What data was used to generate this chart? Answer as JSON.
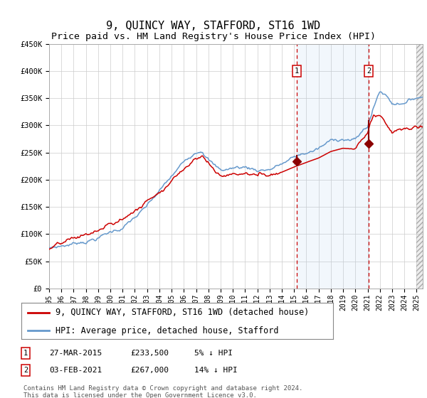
{
  "title": "9, QUINCY WAY, STAFFORD, ST16 1WD",
  "subtitle": "Price paid vs. HM Land Registry's House Price Index (HPI)",
  "ylabel_ticks": [
    "£0",
    "£50K",
    "£100K",
    "£150K",
    "£200K",
    "£250K",
    "£300K",
    "£350K",
    "£400K",
    "£450K"
  ],
  "ytick_values": [
    0,
    50000,
    100000,
    150000,
    200000,
    250000,
    300000,
    350000,
    400000,
    450000
  ],
  "ylim": [
    0,
    450000
  ],
  "xlim_start": 1995.0,
  "xlim_end": 2025.5,
  "legend_label_red": "9, QUINCY WAY, STAFFORD, ST16 1WD (detached house)",
  "legend_label_blue": "HPI: Average price, detached house, Stafford",
  "sale1_date": 2015.23,
  "sale1_price": 233500,
  "sale2_date": 2021.09,
  "sale2_price": 267000,
  "red_color": "#cc0000",
  "blue_color": "#6699cc",
  "blue_fill_color": "#ddeeff",
  "background_color": "#ffffff",
  "grid_color": "#cccccc",
  "copyright_text": "Contains HM Land Registry data © Crown copyright and database right 2024.\nThis data is licensed under the Open Government Licence v3.0.",
  "title_fontsize": 11,
  "subtitle_fontsize": 9.5,
  "tick_fontsize": 7.5,
  "legend_fontsize": 8.5,
  "annotation_fontsize": 8,
  "hpi_seed": 7,
  "red_seed": 13
}
